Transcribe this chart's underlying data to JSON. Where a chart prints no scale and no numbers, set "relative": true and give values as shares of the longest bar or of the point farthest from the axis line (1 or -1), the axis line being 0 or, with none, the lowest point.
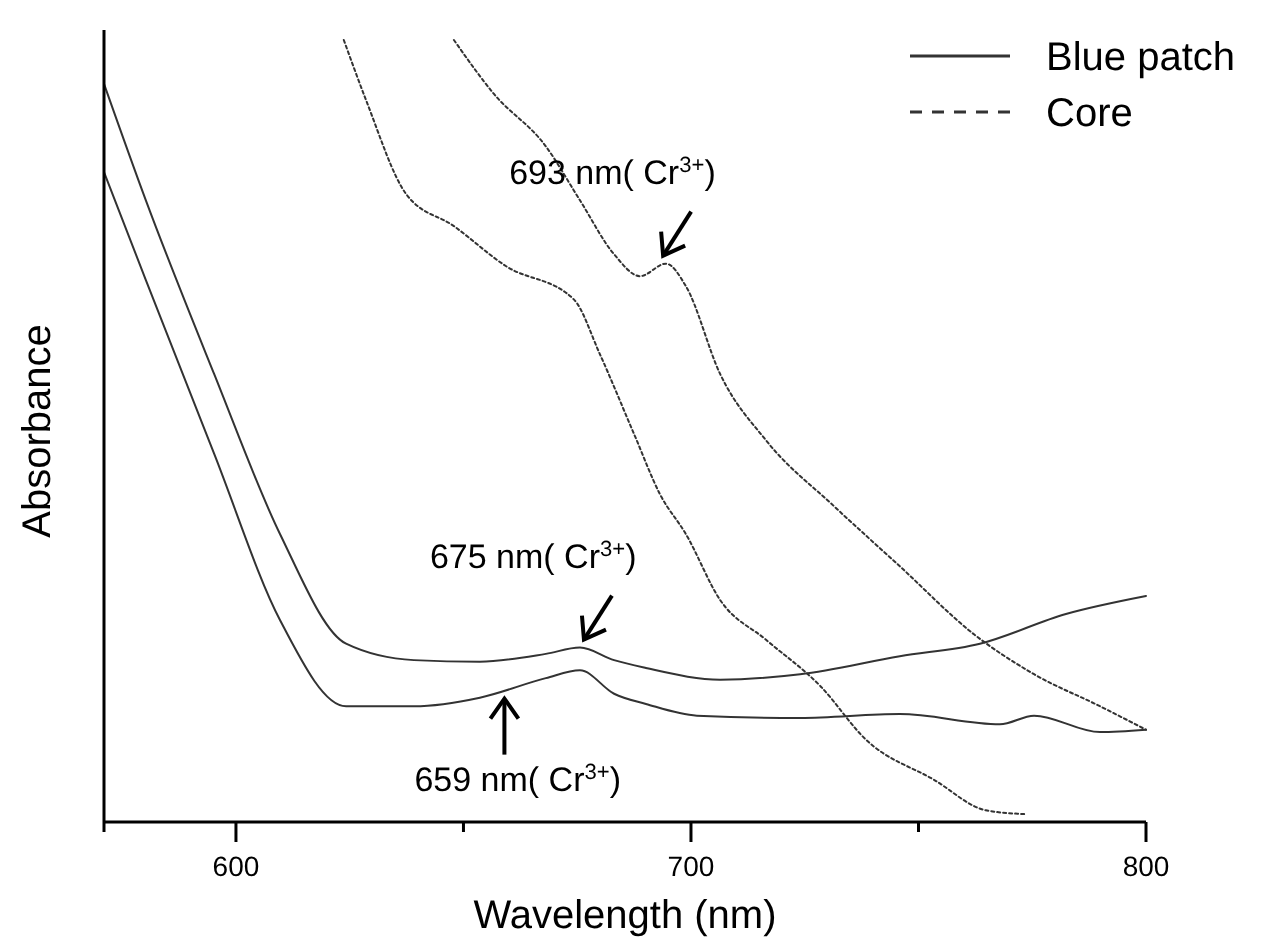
{
  "chart_data": {
    "type": "line",
    "relative": true,
    "xlabel": "Wavelength (nm)",
    "ylabel": "Absorbance",
    "xlim": [
      571,
      800
    ],
    "xticks": [
      600,
      {
        "value": 650,
        "label": null
      },
      700,
      {
        "value": 750,
        "label": null
      },
      800
    ],
    "legend": "top right",
    "marker": "none",
    "series": [
      {
        "name": "Blue patch",
        "color": "#333333",
        "line_style": "solid",
        "x": [
          571,
          580.2,
          595.2,
          609.7,
          624.2,
          639.1,
          653.6,
          668.1,
          675.6,
          683.1,
          690.1,
          706.4,
          724,
          745.9,
          763.5,
          782.4,
          800
        ],
        "values": [
          0.944,
          0.795,
          0.573,
          0.368,
          0.228,
          0.207,
          0.205,
          0.215,
          0.223,
          0.207,
          0.197,
          0.182,
          0.189,
          0.212,
          0.228,
          0.266,
          0.289
        ]
      },
      {
        "color": "#333333",
        "line_style": "solid",
        "x": [
          571,
          580.2,
          595.2,
          609.7,
          624.2,
          639.1,
          653.6,
          668.1,
          675.6,
          683.1,
          690.1,
          701.3,
          724,
          745.9,
          767.9,
          775.4,
          789.9,
          800
        ],
        "values": [
          0.831,
          0.693,
          0.471,
          0.258,
          0.148,
          0.148,
          0.159,
          0.184,
          0.194,
          0.164,
          0.151,
          0.136,
          0.133,
          0.138,
          0.125,
          0.136,
          0.115,
          0.118
        ]
      },
      {
        "name": "Core",
        "color": "#333333",
        "line_style": "dotted",
        "x": [
          623.7,
          628.6,
          637.4,
          647.9,
          659.3,
          674.3,
          680,
          687.5,
          693.2,
          698.9,
          706.4,
          716.5,
          728.4,
          738.5,
          753.4,
          764.8,
          773.6
        ],
        "values": [
          1,
          0.923,
          0.803,
          0.762,
          0.711,
          0.668,
          0.598,
          0.496,
          0.419,
          0.368,
          0.284,
          0.233,
          0.174,
          0.105,
          0.054,
          0.015,
          0.01
        ]
      },
      {
        "color": "#333333",
        "line_style": "dotted",
        "x": [
          647.9,
          656.7,
          668.1,
          675.6,
          683.1,
          688.8,
          694.5,
          698.9,
          706.4,
          716.5,
          731.4,
          745.9,
          762.2,
          775.4,
          789.9,
          800
        ],
        "values": [
          1,
          0.931,
          0.864,
          0.795,
          0.726,
          0.698,
          0.714,
          0.685,
          0.573,
          0.488,
          0.404,
          0.327,
          0.24,
          0.189,
          0.148,
          0.118
        ]
      }
    ],
    "annotations": [
      {
        "text": "693 nm( Cr$^{3+}$)",
        "x": 693,
        "y": 0.714
      },
      {
        "text": "675 nm( Cr$^{3+}$)",
        "x": 675.6,
        "y": 0.223
      },
      {
        "text": "659 nm( Cr$^{3+}$)",
        "x": 659,
        "y": 0.168
      }
    ]
  }
}
